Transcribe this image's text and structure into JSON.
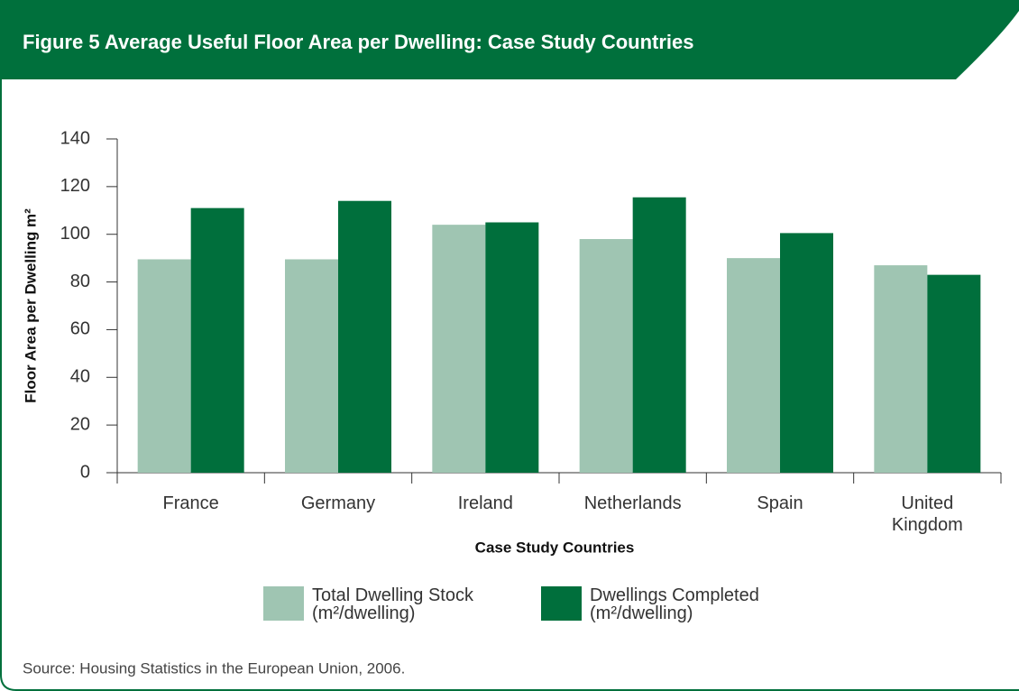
{
  "chart_data": {
    "type": "bar",
    "title": "Figure 5  Average Useful Floor Area per Dwelling: Case Study Countries",
    "x_label": "Case Study Countries",
    "y_label": "Floor Area per Dwelling m²",
    "source": "Source: Housing Statistics in the European Union, 2006.",
    "categories": [
      "France",
      "Germany",
      "Ireland",
      "Netherlands",
      "Spain",
      "United Kingdom"
    ],
    "series": [
      {
        "name": "Total Dwelling Stock (m²/dwelling)",
        "color": "#9fc5b2",
        "values": [
          89.5,
          89.5,
          104,
          98,
          90,
          87
        ]
      },
      {
        "name": "Dwellings Completed (m²/dwelling)",
        "color": "#006f3c",
        "values": [
          111,
          114,
          105,
          115.5,
          100.5,
          83
        ]
      }
    ],
    "ylim": [
      0,
      140
    ],
    "yticks": [
      0,
      20,
      40,
      60,
      80,
      100,
      120,
      140
    ]
  }
}
